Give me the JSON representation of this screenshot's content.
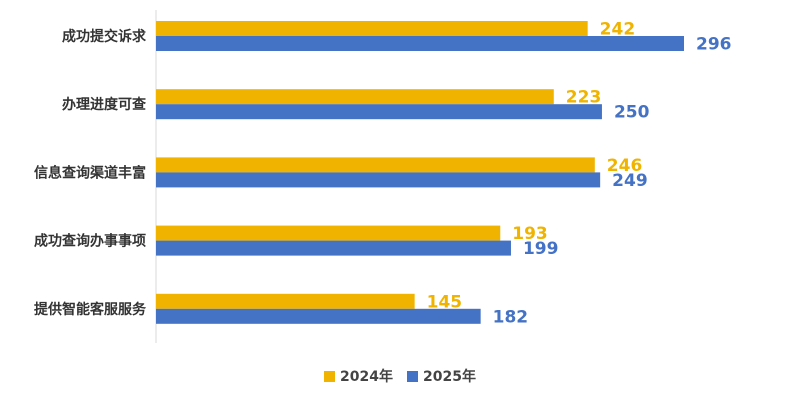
{
  "chart_data": {
    "type": "bar",
    "orientation": "horizontal",
    "categories": [
      "成功提交诉求",
      "办理进度可查",
      "信息查询渠道丰富",
      "成功查询办事事项",
      "提供智能客服服务"
    ],
    "series": [
      {
        "name": "2024年",
        "values": [
          242,
          223,
          246,
          193,
          145
        ],
        "color": "#F0B400"
      },
      {
        "name": "2025年",
        "values": [
          296,
          250,
          249,
          199,
          182
        ],
        "color": "#4472C4"
      }
    ],
    "xlim": [
      0,
      300
    ],
    "grid": false,
    "legend_position": "bottom-center"
  }
}
